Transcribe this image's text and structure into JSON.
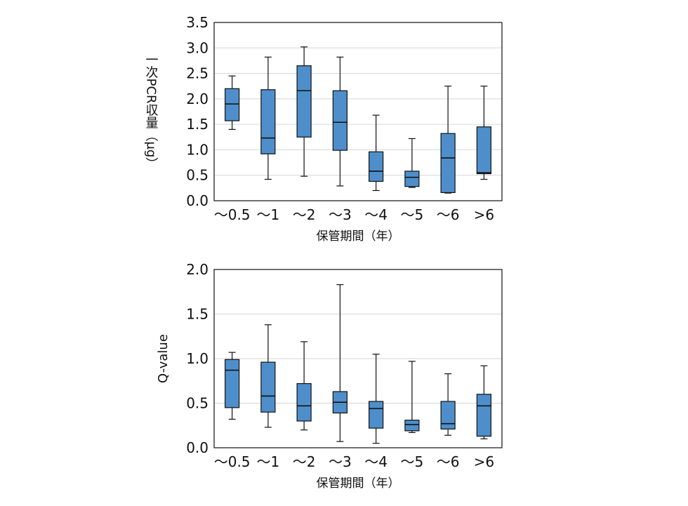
{
  "chart_data": [
    {
      "type": "boxplot",
      "categories": [
        "〜0.5",
        "〜1",
        "〜2",
        "〜3",
        "〜4",
        "〜5",
        "〜6",
        ">6"
      ],
      "xlabel": "保管期間（年）",
      "ylabel": "一次PCR収量（μg）",
      "ylim": [
        0,
        3.5
      ],
      "yticks": [
        "0.0",
        "0.5",
        "1.0",
        "1.5",
        "2.0",
        "2.5",
        "3.0",
        "3.5"
      ],
      "grid": true,
      "box_color": "#4e8fcb",
      "boxes": [
        {
          "min": 1.4,
          "q1": 1.57,
          "median": 1.9,
          "q3": 2.2,
          "max": 2.45
        },
        {
          "min": 0.42,
          "q1": 0.92,
          "median": 1.23,
          "q3": 2.18,
          "max": 2.82
        },
        {
          "min": 0.48,
          "q1": 1.25,
          "median": 2.16,
          "q3": 2.65,
          "max": 3.02
        },
        {
          "min": 0.29,
          "q1": 0.99,
          "median": 1.54,
          "q3": 2.16,
          "max": 2.82
        },
        {
          "min": 0.2,
          "q1": 0.38,
          "median": 0.58,
          "q3": 0.96,
          "max": 1.68
        },
        {
          "min": 0.26,
          "q1": 0.28,
          "median": 0.46,
          "q3": 0.58,
          "max": 1.22
        },
        {
          "min": 0.15,
          "q1": 0.16,
          "median": 0.84,
          "q3": 1.32,
          "max": 2.25
        },
        {
          "min": 0.42,
          "q1": 0.53,
          "median": 0.55,
          "q3": 1.45,
          "max": 2.25
        }
      ]
    },
    {
      "type": "boxplot",
      "categories": [
        "〜0.5",
        "〜1",
        "〜2",
        "〜3",
        "〜4",
        "〜5",
        "〜6",
        ">6"
      ],
      "xlabel": "保管期間（年）",
      "ylabel": "Q-value",
      "ylim": [
        0,
        2.0
      ],
      "yticks": [
        "0.0",
        "0.5",
        "1.0",
        "1.5",
        "2.0"
      ],
      "grid": true,
      "box_color": "#4e8fcb",
      "boxes": [
        {
          "min": 0.32,
          "q1": 0.45,
          "median": 0.87,
          "q3": 0.99,
          "max": 1.07
        },
        {
          "min": 0.23,
          "q1": 0.4,
          "median": 0.58,
          "q3": 0.96,
          "max": 1.38
        },
        {
          "min": 0.2,
          "q1": 0.3,
          "median": 0.47,
          "q3": 0.72,
          "max": 1.19
        },
        {
          "min": 0.07,
          "q1": 0.39,
          "median": 0.51,
          "q3": 0.63,
          "max": 1.83
        },
        {
          "min": 0.05,
          "q1": 0.22,
          "median": 0.44,
          "q3": 0.52,
          "max": 1.05
        },
        {
          "min": 0.17,
          "q1": 0.19,
          "median": 0.26,
          "q3": 0.31,
          "max": 0.97
        },
        {
          "min": 0.14,
          "q1": 0.21,
          "median": 0.27,
          "q3": 0.52,
          "max": 0.83
        },
        {
          "min": 0.1,
          "q1": 0.13,
          "median": 0.47,
          "q3": 0.6,
          "max": 0.92
        }
      ]
    }
  ]
}
